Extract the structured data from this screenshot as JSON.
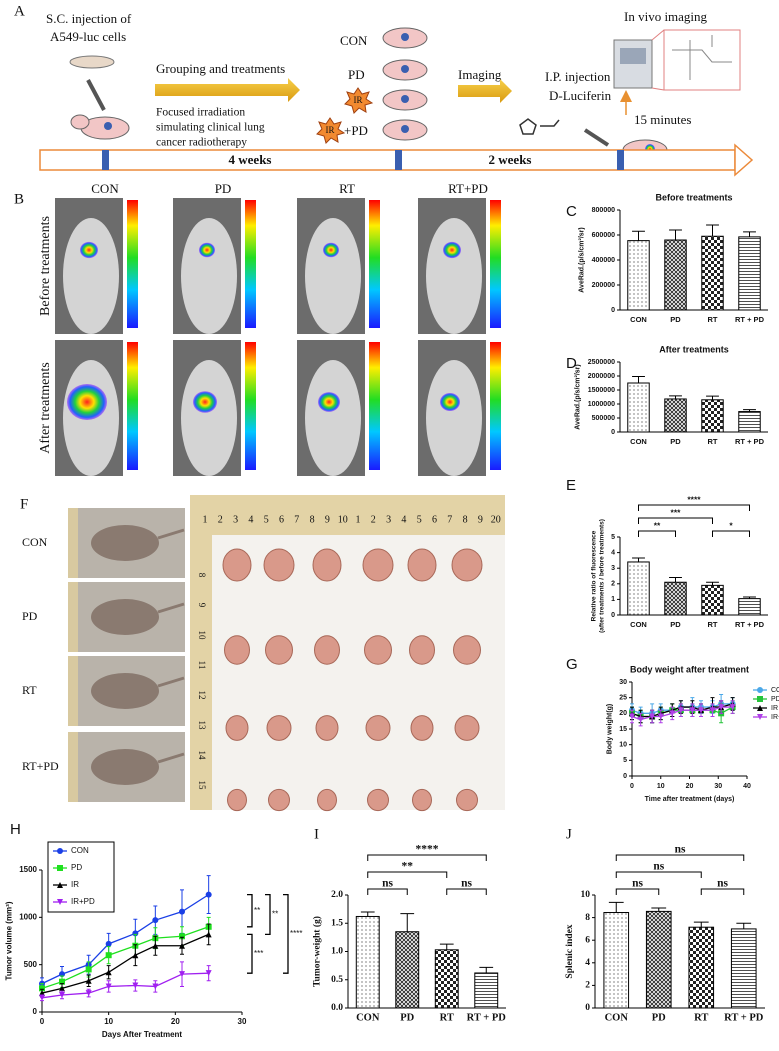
{
  "panel_a": {
    "label": "A",
    "injection": [
      "S.C. injection of",
      "A549-luc cells"
    ],
    "grouping": "Grouping and treatments",
    "irradiation": [
      "Focused irradiation",
      "simulating clinical lung",
      "cancer radiotherapy"
    ],
    "groups": [
      "CON",
      "PD"
    ],
    "ir_badges": [
      "IR",
      "IR"
    ],
    "ir_pd_suffix": "+PD",
    "imaging": "Imaging",
    "luciferin": [
      "I.P. injection of",
      "D-Luciferin"
    ],
    "in_vivo": "In vivo imaging",
    "delay": "15 minutes",
    "durations": [
      "4 weeks",
      "2 weeks"
    ]
  },
  "panel_b": {
    "label": "B",
    "columns": [
      "CON",
      "PD",
      "RT",
      "RT+PD"
    ],
    "rows": [
      "Before treatments",
      "After treatments"
    ]
  },
  "panel_f": {
    "label": "F",
    "rows": [
      "CON",
      "PD",
      "RT",
      "RT+PD"
    ],
    "ruler": [
      "1",
      "2",
      "3",
      "4",
      "5",
      "6",
      "7",
      "8",
      "9",
      "10",
      "1",
      "2",
      "3",
      "4",
      "5",
      "6",
      "7",
      "8",
      "9",
      "20"
    ],
    "ruler_side": [
      "8",
      "9",
      "10",
      "11",
      "12",
      "13",
      "14",
      "15"
    ]
  },
  "chart_data": [
    {
      "panel": "C",
      "type": "bar",
      "title": "Before treatments",
      "y_label": "AveRad.(p/s/cm²/sr)",
      "categories": [
        "CON",
        "PD",
        "RT",
        "RT + PD"
      ],
      "values": [
        555000,
        560000,
        590000,
        585000
      ],
      "errors": [
        75000,
        80000,
        90000,
        40000
      ],
      "ylim": [
        0,
        800000
      ],
      "yticks": [
        0,
        200000,
        400000,
        600000,
        800000
      ]
    },
    {
      "panel": "D",
      "type": "bar",
      "title": "After  treatments",
      "y_label": "AveRad.(p/s/cm²/sr)",
      "categories": [
        "CON",
        "PD",
        "RT",
        "RT + PD"
      ],
      "values": [
        1750000,
        1180000,
        1150000,
        730000
      ],
      "errors": [
        230000,
        110000,
        130000,
        70000
      ],
      "ylim": [
        0,
        2500000
      ],
      "yticks": [
        0,
        500000,
        1000000,
        1500000,
        2000000,
        2500000
      ]
    },
    {
      "panel": "E",
      "type": "bar",
      "y_label": [
        "Relative ratio of fluorescence",
        "(after treatments / before treatments)"
      ],
      "categories": [
        "CON",
        "PD",
        "RT",
        "RT + PD"
      ],
      "values": [
        3.4,
        2.1,
        1.9,
        1.05
      ],
      "errors": [
        0.25,
        0.3,
        0.2,
        0.1
      ],
      "ylim": [
        0,
        5
      ],
      "yticks": [
        0,
        1,
        2,
        3,
        4,
        5
      ],
      "comparisons": [
        {
          "pair": [
            0,
            1
          ],
          "label": "**"
        },
        {
          "pair": [
            0,
            2
          ],
          "label": "***"
        },
        {
          "pair": [
            0,
            3
          ],
          "label": "****"
        },
        {
          "pair": [
            2,
            3
          ],
          "label": "*"
        }
      ]
    },
    {
      "panel": "G",
      "type": "line",
      "title": "Body weight after treatment",
      "x_label": "Time after treatment (days)",
      "y_label": "Body weight(g)",
      "x": [
        0,
        3,
        7,
        10,
        14,
        17,
        21,
        24,
        28,
        31,
        35
      ],
      "series": [
        {
          "name": "CON",
          "color": "#4aa8e8",
          "marker": "circle",
          "values": [
            21,
            20,
            20,
            21,
            21,
            22,
            22,
            22,
            22,
            23,
            23
          ],
          "errors": [
            2,
            2,
            3,
            2,
            2,
            2,
            3,
            2,
            2,
            3,
            2
          ]
        },
        {
          "name": "PD",
          "color": "#25c43a",
          "marker": "square",
          "values": [
            20,
            19,
            19,
            20,
            21,
            21,
            21,
            21,
            21,
            20,
            22
          ],
          "errors": [
            2,
            2,
            2,
            2,
            2,
            2,
            2,
            2,
            2,
            3,
            2
          ]
        },
        {
          "name": "IR",
          "color": "#000000",
          "marker": "triangle",
          "values": [
            20,
            19,
            19,
            20,
            21,
            22,
            22,
            21,
            22,
            22,
            23
          ],
          "errors": [
            2,
            2,
            2,
            2,
            2,
            2,
            2,
            2,
            3,
            2,
            2
          ]
        },
        {
          "name": "IR+PD",
          "color": "#b040e8",
          "marker": "triangle-down",
          "values": [
            19,
            18,
            19,
            19,
            20,
            21,
            21,
            21,
            21,
            22,
            22
          ],
          "errors": [
            2,
            2,
            2,
            2,
            2,
            2,
            2,
            2,
            2,
            2,
            2
          ]
        }
      ],
      "xlim": [
        0,
        40
      ],
      "xticks": [
        0,
        10,
        20,
        30,
        40
      ],
      "ylim": [
        0,
        30
      ],
      "yticks": [
        0,
        5,
        10,
        15,
        20,
        25,
        30
      ],
      "legend": "right"
    },
    {
      "panel": "H",
      "type": "line",
      "x_label": "Days After Treatment",
      "y_label": "Tumor volume (mm³)",
      "x": [
        0,
        3,
        7,
        10,
        14,
        17,
        21,
        25
      ],
      "series": [
        {
          "name": "CON",
          "color": "#1a3fe6",
          "marker": "circle",
          "values": [
            300,
            400,
            500,
            720,
            830,
            970,
            1060,
            1240
          ],
          "errors": [
            60,
            80,
            100,
            110,
            150,
            150,
            230,
            200
          ]
        },
        {
          "name": "PD",
          "color": "#1ee01e",
          "marker": "square",
          "values": [
            250,
            320,
            450,
            600,
            700,
            780,
            800,
            900
          ],
          "errors": [
            50,
            60,
            80,
            90,
            120,
            110,
            100,
            100
          ]
        },
        {
          "name": "IR",
          "color": "#000000",
          "marker": "triangle",
          "values": [
            200,
            250,
            330,
            420,
            600,
            700,
            700,
            820
          ],
          "errors": [
            40,
            50,
            60,
            70,
            110,
            100,
            90,
            110
          ]
        },
        {
          "name": "IR+PD",
          "color": "#a020f0",
          "marker": "triangle-down",
          "values": [
            150,
            180,
            200,
            270,
            280,
            270,
            400,
            410
          ],
          "errors": [
            30,
            40,
            40,
            60,
            60,
            60,
            130,
            80
          ]
        }
      ],
      "xlim": [
        0,
        30
      ],
      "xticks": [
        0,
        10,
        20,
        30
      ],
      "ylim": [
        0,
        1500
      ],
      "yticks": [
        0,
        500,
        1000,
        1500
      ],
      "legend": "top-left",
      "comparisons": [
        {
          "pair": [
            0,
            1
          ],
          "label": "**"
        },
        {
          "pair": [
            0,
            2
          ],
          "label": "**"
        },
        {
          "pair": [
            2,
            3
          ],
          "label": "***"
        },
        {
          "pair": [
            0,
            3
          ],
          "label": "****"
        }
      ]
    },
    {
      "panel": "I",
      "type": "bar",
      "y_label": "Tumor-weight (g)",
      "categories": [
        "CON",
        "PD",
        "RT",
        "RT + PD"
      ],
      "values": [
        1.62,
        1.35,
        1.03,
        0.62
      ],
      "errors": [
        0.08,
        0.32,
        0.1,
        0.1
      ],
      "ylim": [
        0,
        2
      ],
      "yticks": [
        {
          "value": 0,
          "label": "0.0"
        },
        {
          "value": 0.5,
          "label": "0.5"
        },
        {
          "value": 1,
          "label": "1.0"
        },
        {
          "value": 1.5,
          "label": "1.5"
        },
        {
          "value": 2,
          "label": "2.0"
        }
      ],
      "comparisons": [
        {
          "pair": [
            0,
            1
          ],
          "label": "ns"
        },
        {
          "pair": [
            0,
            2
          ],
          "label": "**"
        },
        {
          "pair": [
            0,
            3
          ],
          "label": "****"
        },
        {
          "pair": [
            2,
            3
          ],
          "label": "ns"
        }
      ]
    },
    {
      "panel": "J",
      "type": "bar",
      "y_label": "Splenic index",
      "categories": [
        "CON",
        "PD",
        "RT",
        "RT + PD"
      ],
      "values": [
        8.45,
        8.55,
        7.15,
        7.0
      ],
      "errors": [
        0.9,
        0.3,
        0.45,
        0.5
      ],
      "ylim": [
        0,
        10
      ],
      "yticks": [
        0,
        2,
        4,
        6,
        8,
        10
      ],
      "comparisons": [
        {
          "pair": [
            0,
            1
          ],
          "label": "ns"
        },
        {
          "pair": [
            0,
            2
          ],
          "label": "ns"
        },
        {
          "pair": [
            0,
            3
          ],
          "label": "ns"
        },
        {
          "pair": [
            2,
            3
          ],
          "label": "ns"
        }
      ]
    }
  ]
}
